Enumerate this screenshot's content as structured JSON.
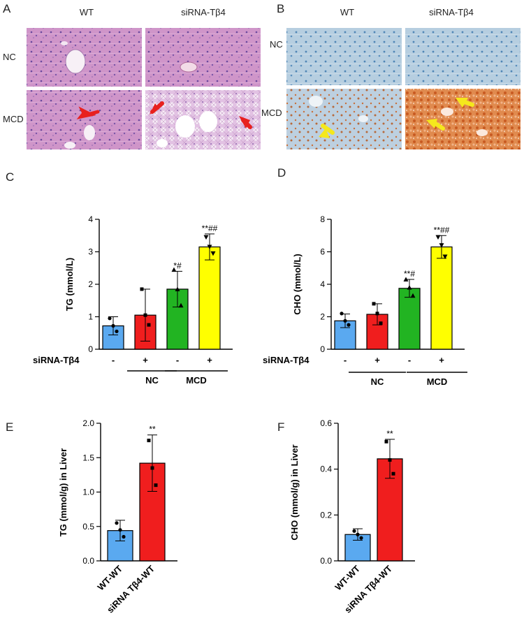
{
  "histology": {
    "A": {
      "letter": "A",
      "col_labels": [
        "WT",
        "siRNA-Tβ4"
      ],
      "row_labels": [
        "NC",
        "MCD"
      ]
    },
    "B": {
      "letter": "B",
      "col_labels": [
        "WT",
        "siRNA-Tβ4"
      ],
      "row_labels": [
        "NC",
        "MCD"
      ]
    },
    "colors": {
      "he_tissue": "#c98fc4",
      "oil_tissue": "#a9c6dc",
      "oil_lipid": "#d9783a",
      "arrow_red": "#e8201e",
      "arrow_yellow": "#f5e81c"
    }
  },
  "chart_data": [
    {
      "panel": "C",
      "type": "bar",
      "categories": [
        "-",
        "+",
        "-",
        "+"
      ],
      "groups": [
        {
          "label": "NC",
          "span": [
            0,
            1
          ]
        },
        {
          "label": "MCD",
          "span": [
            2,
            3
          ]
        }
      ],
      "factor_label": "siRNA-Tβ4",
      "values": [
        0.72,
        1.05,
        1.85,
        3.15
      ],
      "errors": [
        0.28,
        0.8,
        0.55,
        0.4
      ],
      "points": [
        [
          0.95,
          0.72,
          0.55
        ],
        [
          1.85,
          1.05,
          0.75
        ],
        [
          2.45,
          1.85,
          1.35
        ],
        [
          3.45,
          3.15,
          2.95
        ]
      ],
      "annotations": [
        "",
        "",
        "*#",
        "**##"
      ],
      "colors": [
        "#5aa9f0",
        "#f01e1e",
        "#22b422",
        "#ffff00"
      ],
      "ylabel": "TG (mmol/L)",
      "ylim": [
        0,
        4
      ],
      "yticks": [
        0,
        1,
        2,
        3,
        4
      ]
    },
    {
      "panel": "D",
      "type": "bar",
      "categories": [
        "-",
        "+",
        "-",
        "+"
      ],
      "groups": [
        {
          "label": "NC",
          "span": [
            0,
            1
          ]
        },
        {
          "label": "MCD",
          "span": [
            2,
            3
          ]
        }
      ],
      "factor_label": "siRNA-Tβ4",
      "values": [
        1.75,
        2.15,
        3.75,
        6.3
      ],
      "errors": [
        0.42,
        0.65,
        0.55,
        0.7
      ],
      "points": [
        [
          2.2,
          1.75,
          1.5
        ],
        [
          2.8,
          2.2,
          1.6
        ],
        [
          4.3,
          3.8,
          3.3
        ],
        [
          6.9,
          6.4,
          5.7
        ]
      ],
      "annotations": [
        "",
        "",
        "**#",
        "**##"
      ],
      "colors": [
        "#5aa9f0",
        "#f01e1e",
        "#22b422",
        "#ffff00"
      ],
      "ylabel": "CHO (mmol/L)",
      "ylim": [
        0,
        8
      ],
      "yticks": [
        0,
        2,
        4,
        6,
        8
      ]
    },
    {
      "panel": "E",
      "type": "bar",
      "categories": [
        "WT-WT",
        "siRNA Tβ4-WT"
      ],
      "values": [
        0.44,
        1.42
      ],
      "errors": [
        0.15,
        0.41
      ],
      "points": [
        [
          0.55,
          0.45,
          0.35
        ],
        [
          1.75,
          1.35,
          1.1
        ]
      ],
      "annotations": [
        "",
        "**"
      ],
      "colors": [
        "#5aa9f0",
        "#f01e1e"
      ],
      "ylabel": "TG (mmol/g) in Liver",
      "ylim": [
        0,
        2.0
      ],
      "yticks": [
        0.0,
        0.5,
        1.0,
        1.5,
        2.0
      ],
      "ytick_labels": [
        "0.0",
        "0.5",
        "1.0",
        "1.5",
        "2.0"
      ]
    },
    {
      "panel": "F",
      "type": "bar",
      "categories": [
        "WT-WT",
        "siRNA Tβ4-WT"
      ],
      "values": [
        0.115,
        0.445
      ],
      "errors": [
        0.025,
        0.085
      ],
      "points": [
        [
          0.13,
          0.115,
          0.1
        ],
        [
          0.52,
          0.44,
          0.38
        ]
      ],
      "annotations": [
        "",
        "**"
      ],
      "colors": [
        "#5aa9f0",
        "#f01e1e"
      ],
      "ylabel": "CHO (mmol/g) in Liver",
      "ylim": [
        0,
        0.6
      ],
      "yticks": [
        0.0,
        0.2,
        0.4,
        0.6
      ],
      "ytick_labels": [
        "0.0",
        "0.2",
        "0.4",
        "0.6"
      ]
    }
  ]
}
